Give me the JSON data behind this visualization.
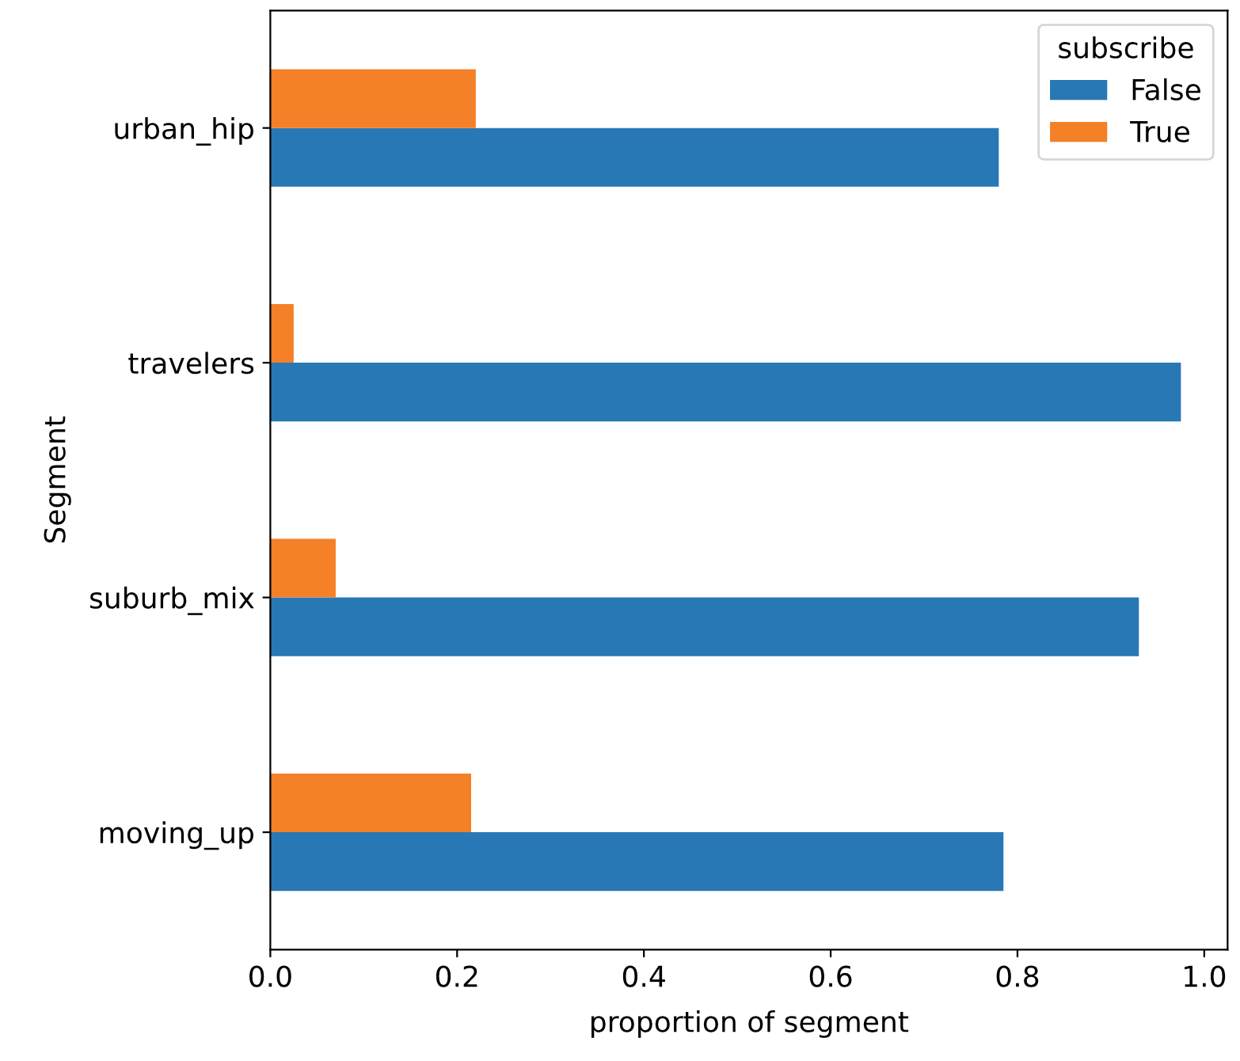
{
  "chart_data": {
    "type": "bar",
    "orientation": "horizontal",
    "xlabel": "proportion of segment",
    "ylabel": "Segment",
    "legend_title": "subscribe",
    "legend": "top right",
    "grid": false,
    "categories": [
      "urban_hip",
      "travelers",
      "suburb_mix",
      "moving_up"
    ],
    "series": [
      {
        "name": "False",
        "color": "#2878b5",
        "values": [
          0.78,
          0.975,
          0.93,
          0.785
        ]
      },
      {
        "name": "True",
        "color": "#f48028",
        "values": [
          0.22,
          0.025,
          0.07,
          0.215
        ]
      }
    ],
    "xlim": [
      0,
      1.025
    ],
    "xticks": [
      {
        "value": 0,
        "label": "0.0"
      },
      {
        "value": 0.2,
        "label": "0.2"
      },
      {
        "value": 0.4,
        "label": "0.4"
      },
      {
        "value": 0.6,
        "label": "0.6"
      },
      {
        "value": 0.8,
        "label": "0.8"
      },
      {
        "value": 1,
        "label": "1.0"
      }
    ]
  }
}
